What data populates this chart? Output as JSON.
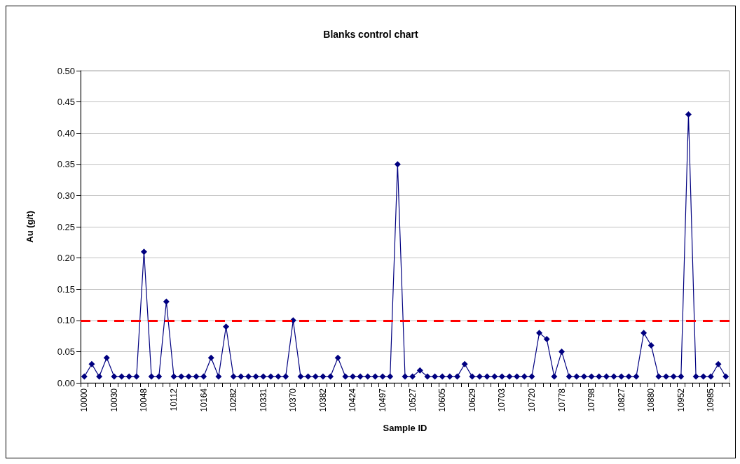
{
  "chart_data": {
    "type": "line",
    "title": "Blanks control chart",
    "xlabel": "Sample ID",
    "ylabel": "Au (g/t)",
    "categories": [
      "10000",
      null,
      null,
      null,
      "10030",
      null,
      null,
      null,
      "10048",
      null,
      null,
      null,
      "10112",
      null,
      null,
      null,
      "10164",
      null,
      null,
      null,
      "10282",
      null,
      null,
      null,
      "10331",
      null,
      null,
      null,
      "10370",
      null,
      null,
      null,
      "10382",
      null,
      null,
      null,
      "10424",
      null,
      null,
      null,
      "10497",
      null,
      null,
      null,
      "10527",
      null,
      null,
      null,
      "10605",
      null,
      null,
      null,
      "10629",
      null,
      null,
      null,
      "10703",
      null,
      null,
      null,
      "10720",
      null,
      null,
      null,
      "10778",
      null,
      null,
      null,
      "10798",
      null,
      null,
      null,
      "10827",
      null,
      null,
      null,
      "10880",
      null,
      null,
      null,
      "10952",
      null,
      null,
      null,
      "10985",
      null,
      null
    ],
    "series": [
      {
        "color": "#000080",
        "values": [
          0.01,
          0.03,
          0.01,
          0.04,
          0.01,
          0.01,
          0.01,
          0.01,
          0.21,
          0.01,
          0.01,
          0.13,
          0.01,
          0.01,
          0.01,
          0.01,
          0.01,
          0.04,
          0.01,
          0.09,
          0.01,
          0.01,
          0.01,
          0.01,
          0.01,
          0.01,
          0.01,
          0.01,
          0.1,
          0.01,
          0.01,
          0.01,
          0.01,
          0.01,
          0.04,
          0.01,
          0.01,
          0.01,
          0.01,
          0.01,
          0.01,
          0.01,
          0.35,
          0.01,
          0.01,
          0.02,
          0.01,
          0.01,
          0.01,
          0.01,
          0.01,
          0.03,
          0.01,
          0.01,
          0.01,
          0.01,
          0.01,
          0.01,
          0.01,
          0.01,
          0.01,
          0.08,
          0.07,
          0.01,
          0.05,
          0.01,
          0.01,
          0.01,
          0.01,
          0.01,
          0.01,
          0.01,
          0.01,
          0.01,
          0.01,
          0.08,
          0.06,
          0.01,
          0.01,
          0.01,
          0.01,
          0.43,
          0.01,
          0.01,
          0.01,
          0.03,
          0.01
        ]
      }
    ],
    "ylim": [
      0,
      0.5
    ],
    "yticks": [
      {
        "value": 0,
        "label": "0.00"
      },
      {
        "value": 0.05,
        "label": "0.05"
      },
      {
        "value": 0.1,
        "label": "0.10"
      },
      {
        "value": 0.15,
        "label": "0.15"
      },
      {
        "value": 0.2,
        "label": "0.20"
      },
      {
        "value": 0.25,
        "label": "0.25"
      },
      {
        "value": 0.3,
        "label": "0.30"
      },
      {
        "value": 0.35,
        "label": "0.35"
      },
      {
        "value": 0.4,
        "label": "0.40"
      },
      {
        "value": 0.45,
        "label": "0.45"
      },
      {
        "value": 0.5,
        "label": "0.50"
      }
    ],
    "grid": "y",
    "marker": "diamond",
    "line_style": "solid",
    "ref_lines": [
      {
        "axis": "y",
        "value": 0.1,
        "color": "#ff0000",
        "line_style": "dashed"
      }
    ]
  }
}
